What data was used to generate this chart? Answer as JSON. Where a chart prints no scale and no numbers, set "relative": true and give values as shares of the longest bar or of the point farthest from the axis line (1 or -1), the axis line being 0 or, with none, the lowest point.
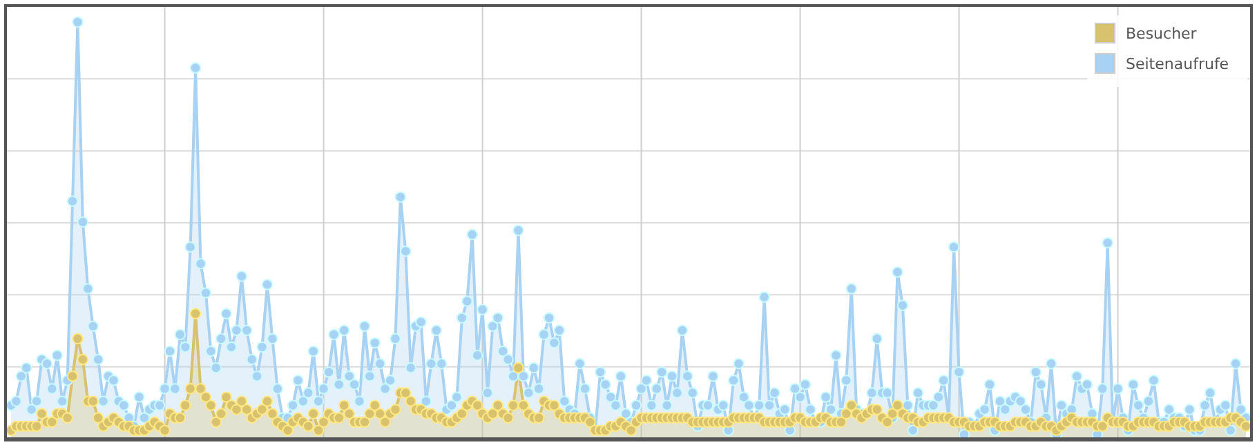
{
  "chart_data": {
    "type": "area",
    "relative": true,
    "grid": true,
    "legend": "top right",
    "marker": "circle",
    "line_style": "solid",
    "categories": [
      null,
      null,
      null,
      null,
      null,
      null,
      null,
      null,
      null,
      null,
      null,
      null,
      null,
      null,
      null,
      null,
      null,
      null,
      null,
      null,
      null,
      null,
      null,
      null,
      null,
      null,
      null,
      null,
      null,
      null,
      null,
      null,
      null,
      null,
      null,
      null,
      null,
      null,
      null,
      null,
      null,
      null,
      null,
      null,
      null,
      null,
      null,
      null,
      null,
      null,
      null,
      null,
      null,
      null,
      null,
      null,
      null,
      null,
      null,
      null,
      null,
      null,
      null,
      null,
      null,
      null,
      null,
      null,
      null,
      null,
      null,
      null,
      null,
      null,
      null,
      null,
      null,
      null,
      null,
      null,
      null,
      null,
      null,
      null,
      null,
      null,
      null,
      null,
      null,
      null,
      null,
      null,
      null,
      null,
      null,
      null,
      null,
      null,
      null,
      null,
      null,
      null,
      null,
      null,
      null,
      null,
      null,
      null,
      null,
      null,
      null,
      null,
      null,
      null,
      null,
      null,
      null,
      null,
      null,
      null,
      null,
      null,
      null,
      null,
      null,
      null,
      null,
      null,
      null,
      null,
      null,
      null,
      null,
      null,
      null,
      null,
      null,
      null,
      null,
      null,
      null,
      null,
      null,
      null,
      null,
      null,
      null,
      null,
      null,
      null,
      null,
      null,
      null,
      null,
      null,
      null,
      null,
      null,
      null,
      null,
      null,
      null,
      null,
      null,
      null,
      null,
      null,
      null,
      null,
      null,
      null,
      null,
      null,
      null,
      null,
      null,
      null,
      null,
      null,
      null,
      null,
      null,
      null,
      null,
      null,
      null,
      null,
      null,
      null,
      null,
      null,
      null,
      null,
      null,
      null,
      null,
      null,
      null,
      null,
      null,
      null,
      null,
      null,
      null,
      null,
      null,
      null,
      null,
      null,
      null,
      null,
      null,
      null,
      null,
      null,
      null,
      null,
      null,
      null,
      null,
      null,
      null,
      null,
      null,
      null,
      null,
      null,
      null,
      null,
      null,
      null,
      null,
      null,
      null,
      null,
      null,
      null,
      null,
      null,
      null,
      null,
      null
    ],
    "series": [
      {
        "name": "Besucher",
        "color": "#d9c26e",
        "values": [
          0.02,
          0.03,
          0.03,
          0.03,
          0.03,
          0.03,
          0.06,
          0.04,
          0.04,
          0.06,
          0.06,
          0.05,
          0.15,
          0.24,
          0.19,
          0.09,
          0.09,
          0.05,
          0.03,
          0.04,
          0.05,
          0.04,
          0.03,
          0.03,
          0.02,
          0.02,
          0.02,
          0.03,
          0.04,
          0.03,
          0.02,
          0.06,
          0.05,
          0.05,
          0.08,
          0.12,
          0.3,
          0.12,
          0.1,
          0.08,
          0.04,
          0.06,
          0.1,
          0.08,
          0.07,
          0.09,
          0.07,
          0.05,
          0.06,
          0.07,
          0.09,
          0.06,
          0.04,
          0.03,
          0.02,
          0.04,
          0.05,
          0.04,
          0.03,
          0.06,
          0.02,
          0.04,
          0.06,
          0.05,
          0.05,
          0.08,
          0.06,
          0.04,
          0.04,
          0.04,
          0.06,
          0.08,
          0.06,
          0.04,
          0.06,
          0.07,
          0.11,
          0.11,
          0.09,
          0.07,
          0.07,
          0.06,
          0.06,
          0.05,
          0.05,
          0.04,
          0.04,
          0.05,
          0.06,
          0.08,
          0.09,
          0.08,
          0.06,
          0.05,
          0.06,
          0.08,
          0.06,
          0.05,
          0.08,
          0.17,
          0.08,
          0.06,
          0.05,
          0.05,
          0.09,
          0.08,
          0.08,
          0.06,
          0.05,
          0.05,
          0.05,
          0.05,
          0.05,
          0.04,
          0.02,
          0.02,
          0.02,
          0.03,
          0.03,
          0.04,
          0.03,
          0.02,
          0.04,
          0.05,
          0.05,
          0.05,
          0.05,
          0.05,
          0.05,
          0.05,
          0.05,
          0.05,
          0.05,
          0.04,
          0.04,
          0.04,
          0.04,
          0.04,
          0.04,
          0.04,
          0.04,
          0.05,
          0.05,
          0.05,
          0.05,
          0.05,
          0.05,
          0.04,
          0.04,
          0.04,
          0.04,
          0.04,
          0.04,
          0.05,
          0.05,
          0.04,
          0.04,
          0.04,
          0.05,
          0.05,
          0.04,
          0.04,
          0.04,
          0.06,
          0.08,
          0.06,
          0.05,
          0.06,
          0.07,
          0.07,
          0.05,
          0.04,
          0.06,
          0.08,
          0.06,
          0.05,
          0.05,
          0.04,
          0.04,
          0.05,
          0.05,
          0.05,
          0.05,
          0.05,
          0.04,
          0.04,
          0.04,
          0.03,
          0.03,
          0.03,
          0.04,
          0.04,
          0.04,
          0.03,
          0.03,
          0.03,
          0.04,
          0.04,
          0.04,
          0.03,
          0.03,
          0.04,
          0.03,
          0.03,
          0.02,
          0.03,
          0.04,
          0.05,
          0.04,
          0.04,
          0.04,
          0.04,
          0.03,
          0.03,
          0.05,
          0.04,
          0.04,
          0.04,
          0.03,
          0.03,
          0.04,
          0.04,
          0.04,
          0.04,
          0.03,
          0.03,
          0.03,
          0.04,
          0.04,
          0.04,
          0.03,
          0.03,
          0.03,
          0.04,
          0.04,
          0.04,
          0.04,
          0.04,
          0.05,
          0.05,
          0.04,
          0.03
        ]
      },
      {
        "name": "Seitenaufrufe",
        "color": "#a7d2f3",
        "values": [
          0.08,
          0.09,
          0.15,
          0.17,
          0.07,
          0.09,
          0.19,
          0.18,
          0.12,
          0.2,
          0.09,
          0.14,
          0.57,
          1.0,
          0.52,
          0.36,
          0.27,
          0.19,
          0.09,
          0.15,
          0.14,
          0.09,
          0.08,
          0.05,
          0.03,
          0.1,
          0.05,
          0.07,
          0.08,
          0.08,
          0.12,
          0.21,
          0.12,
          0.25,
          0.22,
          0.46,
          0.89,
          0.42,
          0.35,
          0.21,
          0.17,
          0.24,
          0.3,
          0.22,
          0.26,
          0.39,
          0.26,
          0.19,
          0.15,
          0.22,
          0.37,
          0.24,
          0.12,
          0.05,
          0.05,
          0.08,
          0.14,
          0.09,
          0.11,
          0.21,
          0.09,
          0.12,
          0.16,
          0.25,
          0.13,
          0.26,
          0.15,
          0.13,
          0.09,
          0.27,
          0.15,
          0.23,
          0.18,
          0.12,
          0.14,
          0.24,
          0.58,
          0.45,
          0.17,
          0.27,
          0.28,
          0.09,
          0.18,
          0.26,
          0.18,
          0.07,
          0.08,
          0.1,
          0.29,
          0.33,
          0.49,
          0.2,
          0.31,
          0.11,
          0.27,
          0.29,
          0.21,
          0.19,
          0.15,
          0.5,
          0.15,
          0.11,
          0.17,
          0.12,
          0.25,
          0.29,
          0.23,
          0.26,
          0.09,
          0.07,
          0.06,
          0.18,
          0.12,
          0.05,
          0.02,
          0.16,
          0.13,
          0.1,
          0.08,
          0.15,
          0.06,
          0.04,
          0.08,
          0.12,
          0.14,
          0.08,
          0.12,
          0.16,
          0.08,
          0.15,
          0.11,
          0.26,
          0.15,
          0.11,
          0.03,
          0.08,
          0.08,
          0.15,
          0.07,
          0.08,
          0.02,
          0.14,
          0.18,
          0.1,
          0.08,
          0.05,
          0.08,
          0.34,
          0.08,
          0.11,
          0.06,
          0.07,
          0.02,
          0.12,
          0.1,
          0.13,
          0.07,
          0.04,
          0.04,
          0.1,
          0.07,
          0.2,
          0.06,
          0.14,
          0.36,
          0.07,
          0.06,
          0.06,
          0.11,
          0.24,
          0.11,
          0.11,
          0.05,
          0.4,
          0.32,
          0.08,
          0.02,
          0.11,
          0.08,
          0.08,
          0.08,
          0.1,
          0.14,
          0.05,
          0.46,
          0.16,
          0.01,
          0.04,
          0.03,
          0.06,
          0.07,
          0.13,
          0.02,
          0.09,
          0.07,
          0.09,
          0.1,
          0.09,
          0.07,
          0.04,
          0.16,
          0.13,
          0.05,
          0.18,
          0.01,
          0.08,
          0.06,
          0.07,
          0.15,
          0.12,
          0.13,
          0.06,
          0.01,
          0.12,
          0.47,
          0.04,
          0.12,
          0.05,
          0.02,
          0.13,
          0.08,
          0.05,
          0.09,
          0.14,
          0.04,
          0.04,
          0.07,
          0.05,
          0.05,
          0.03,
          0.07,
          0.02,
          0.02,
          0.08,
          0.11,
          0.04,
          0.07,
          0.08,
          0.02,
          0.18,
          0.07,
          0.05
        ]
      }
    ]
  }
}
